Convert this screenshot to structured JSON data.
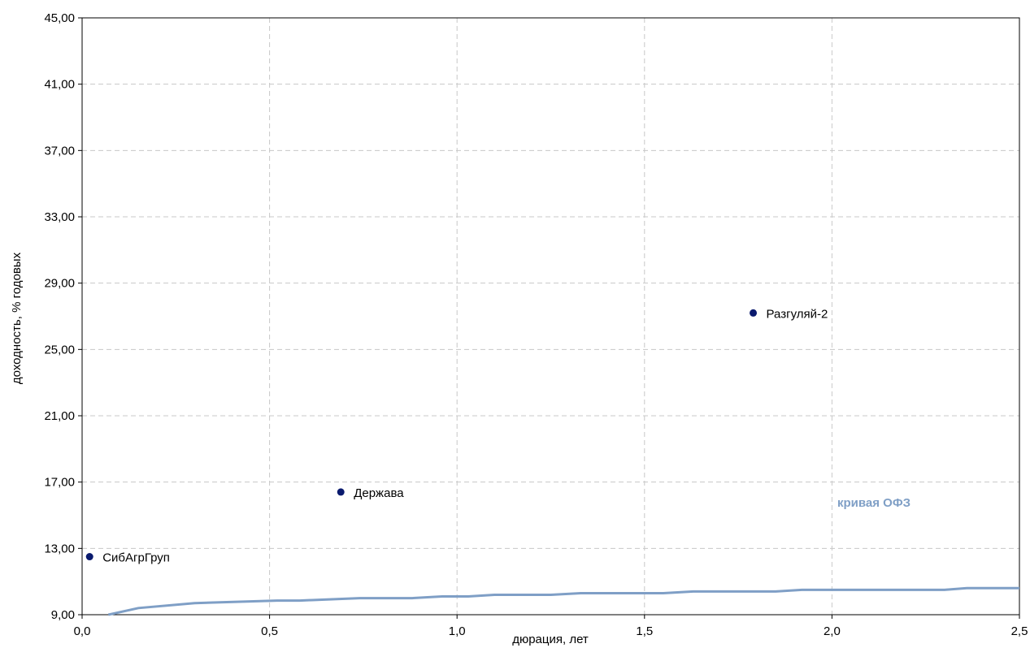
{
  "chart_data": {
    "type": "scatter",
    "xlabel": "дюрация, лет",
    "ylabel": "доходность, % годовых",
    "xlim": [
      0,
      2.5
    ],
    "ylim": [
      9,
      45
    ],
    "x_ticks": [
      "0,0",
      "0,5",
      "1,0",
      "1,5",
      "2,0",
      "2,5"
    ],
    "y_ticks": [
      "9,00",
      "13,00",
      "17,00",
      "21,00",
      "25,00",
      "29,00",
      "33,00",
      "37,00",
      "41,00",
      "45,00"
    ],
    "grid": true,
    "points": [
      {
        "label": "СибАгрГруп",
        "x": 0.02,
        "y": 12.5
      },
      {
        "label": "Держава",
        "x": 0.69,
        "y": 16.4
      },
      {
        "label": "Разгуляй-2",
        "x": 1.79,
        "y": 27.2
      }
    ],
    "curve": {
      "name": "кривая ОФЗ",
      "color": "#7f9fc6",
      "x": [
        0.07,
        0.15,
        0.3,
        0.52,
        0.58,
        0.74,
        0.88,
        0.96,
        1.03,
        1.1,
        1.25,
        1.33,
        1.55,
        1.63,
        1.85,
        1.92,
        2.3,
        2.36,
        2.5
      ],
      "y": [
        9.0,
        9.4,
        9.7,
        9.85,
        9.85,
        10.0,
        10.0,
        10.1,
        10.1,
        10.2,
        10.2,
        10.3,
        10.3,
        10.4,
        10.4,
        10.5,
        10.5,
        10.6,
        10.6
      ]
    },
    "point_color": "#0a1a6e"
  }
}
